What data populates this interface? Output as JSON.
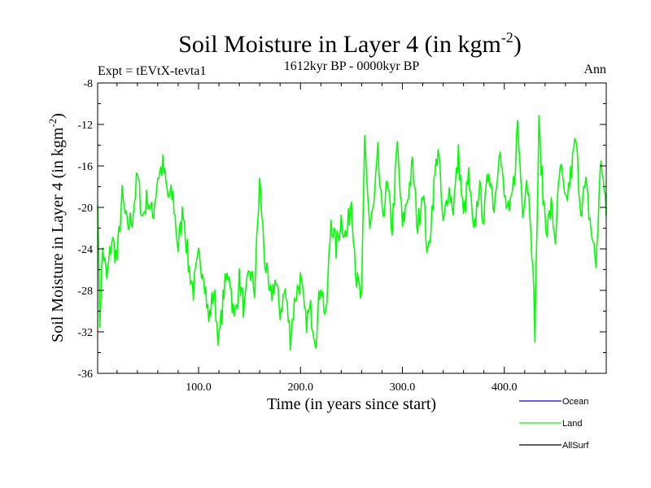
{
  "chart_data": {
    "type": "line",
    "title": "Soil Moisture in Layer 4 (in kgm",
    "title_sup": "-2",
    "title_close": ")",
    "subtitle_left": "Expt = tEVtX-tevta1",
    "subtitle_center": "1612kyr BP - 0000kyr BP",
    "subtitle_right": "Ann",
    "xlabel": "Time (in years since start)",
    "ylabel": "Soil Moisture in Layer 4 (in kgm",
    "ylabel_sup": "-2",
    "ylabel_close": ")",
    "xlim": [
      1,
      500
    ],
    "ylim": [
      -36,
      -8
    ],
    "xticks": [
      100,
      200,
      300,
      400
    ],
    "xtick_labels": [
      "100.0",
      "200.0",
      "300.0",
      "400.0"
    ],
    "yticks": [
      -36,
      -32,
      -28,
      -24,
      -20,
      -16,
      -12,
      -8
    ],
    "ytick_labels": [
      "-36",
      "-32",
      "-28",
      "-24",
      "-20",
      "-16",
      "-12",
      "-8"
    ],
    "legend": [
      {
        "name": "Ocean",
        "color": "#0000ff"
      },
      {
        "name": "Land",
        "color": "#00ff00"
      },
      {
        "name": "AllSurf",
        "color": "#000000"
      }
    ],
    "series": [
      {
        "name": "Land",
        "color": "#00ff00",
        "anchors": [
          [
            1,
            -18.5
          ],
          [
            3,
            -31.0
          ],
          [
            6,
            -24.0
          ],
          [
            10,
            -27.0
          ],
          [
            15,
            -23.0
          ],
          [
            20,
            -25.0
          ],
          [
            25,
            -19.0
          ],
          [
            30,
            -22.0
          ],
          [
            35,
            -21.0
          ],
          [
            40,
            -17.0
          ],
          [
            45,
            -21.0
          ],
          [
            50,
            -19.0
          ],
          [
            55,
            -21.0
          ],
          [
            60,
            -17.0
          ],
          [
            65,
            -16.0
          ],
          [
            70,
            -19.0
          ],
          [
            75,
            -19.0
          ],
          [
            80,
            -24.0
          ],
          [
            85,
            -20.0
          ],
          [
            90,
            -25.5
          ],
          [
            95,
            -28.0
          ],
          [
            100,
            -25.0
          ],
          [
            105,
            -26.0
          ],
          [
            110,
            -31.0
          ],
          [
            115,
            -28.0
          ],
          [
            120,
            -33.0
          ],
          [
            125,
            -28.0
          ],
          [
            130,
            -26.0
          ],
          [
            135,
            -31.0
          ],
          [
            140,
            -27.0
          ],
          [
            145,
            -30.0
          ],
          [
            150,
            -26.0
          ],
          [
            155,
            -28.0
          ],
          [
            160,
            -17.5
          ],
          [
            165,
            -25.0
          ],
          [
            170,
            -29.0
          ],
          [
            175,
            -27.0
          ],
          [
            180,
            -30.0
          ],
          [
            185,
            -28.0
          ],
          [
            190,
            -32.5
          ],
          [
            195,
            -28.5
          ],
          [
            200,
            -27.0
          ],
          [
            205,
            -31.0
          ],
          [
            210,
            -30.0
          ],
          [
            215,
            -32.5
          ],
          [
            220,
            -27.0
          ],
          [
            225,
            -31.0
          ],
          [
            230,
            -21.0
          ],
          [
            235,
            -24.0
          ],
          [
            240,
            -21.0
          ],
          [
            245,
            -23.0
          ],
          [
            250,
            -19.0
          ],
          [
            255,
            -27.0
          ],
          [
            260,
            -29.0
          ],
          [
            263,
            -13.5
          ],
          [
            268,
            -22.0
          ],
          [
            272,
            -20.0
          ],
          [
            276,
            -15.0
          ],
          [
            280,
            -21.0
          ],
          [
            285,
            -18.0
          ],
          [
            290,
            -22.0
          ],
          [
            295,
            -14.0
          ],
          [
            300,
            -22.0
          ],
          [
            305,
            -19.0
          ],
          [
            310,
            -16.0
          ],
          [
            315,
            -22.0
          ],
          [
            320,
            -18.0
          ],
          [
            325,
            -25.0
          ],
          [
            330,
            -19.0
          ],
          [
            335,
            -14.0
          ],
          [
            340,
            -22.0
          ],
          [
            345,
            -18.0
          ],
          [
            350,
            -20.0
          ],
          [
            355,
            -15.0
          ],
          [
            360,
            -21.0
          ],
          [
            365,
            -17.0
          ],
          [
            370,
            -23.0
          ],
          [
            375,
            -18.0
          ],
          [
            380,
            -21.0
          ],
          [
            385,
            -16.0
          ],
          [
            390,
            -20.0
          ],
          [
            395,
            -14.0
          ],
          [
            400,
            -19.0
          ],
          [
            405,
            -21.0
          ],
          [
            410,
            -17.0
          ],
          [
            413,
            -12.0
          ],
          [
            418,
            -20.0
          ],
          [
            422,
            -17.0
          ],
          [
            426,
            -21.0
          ],
          [
            430,
            -31.8
          ],
          [
            434,
            -12.2
          ],
          [
            438,
            -19.0
          ],
          [
            442,
            -22.0
          ],
          [
            446,
            -20.0
          ],
          [
            450,
            -23.0
          ],
          [
            455,
            -16.0
          ],
          [
            460,
            -20.0
          ],
          [
            465,
            -17.0
          ],
          [
            470,
            -13.5
          ],
          [
            475,
            -20.0
          ],
          [
            480,
            -18.0
          ],
          [
            485,
            -22.0
          ],
          [
            490,
            -25.5
          ],
          [
            495,
            -15.0
          ],
          [
            500,
            -21.0
          ]
        ]
      }
    ]
  }
}
